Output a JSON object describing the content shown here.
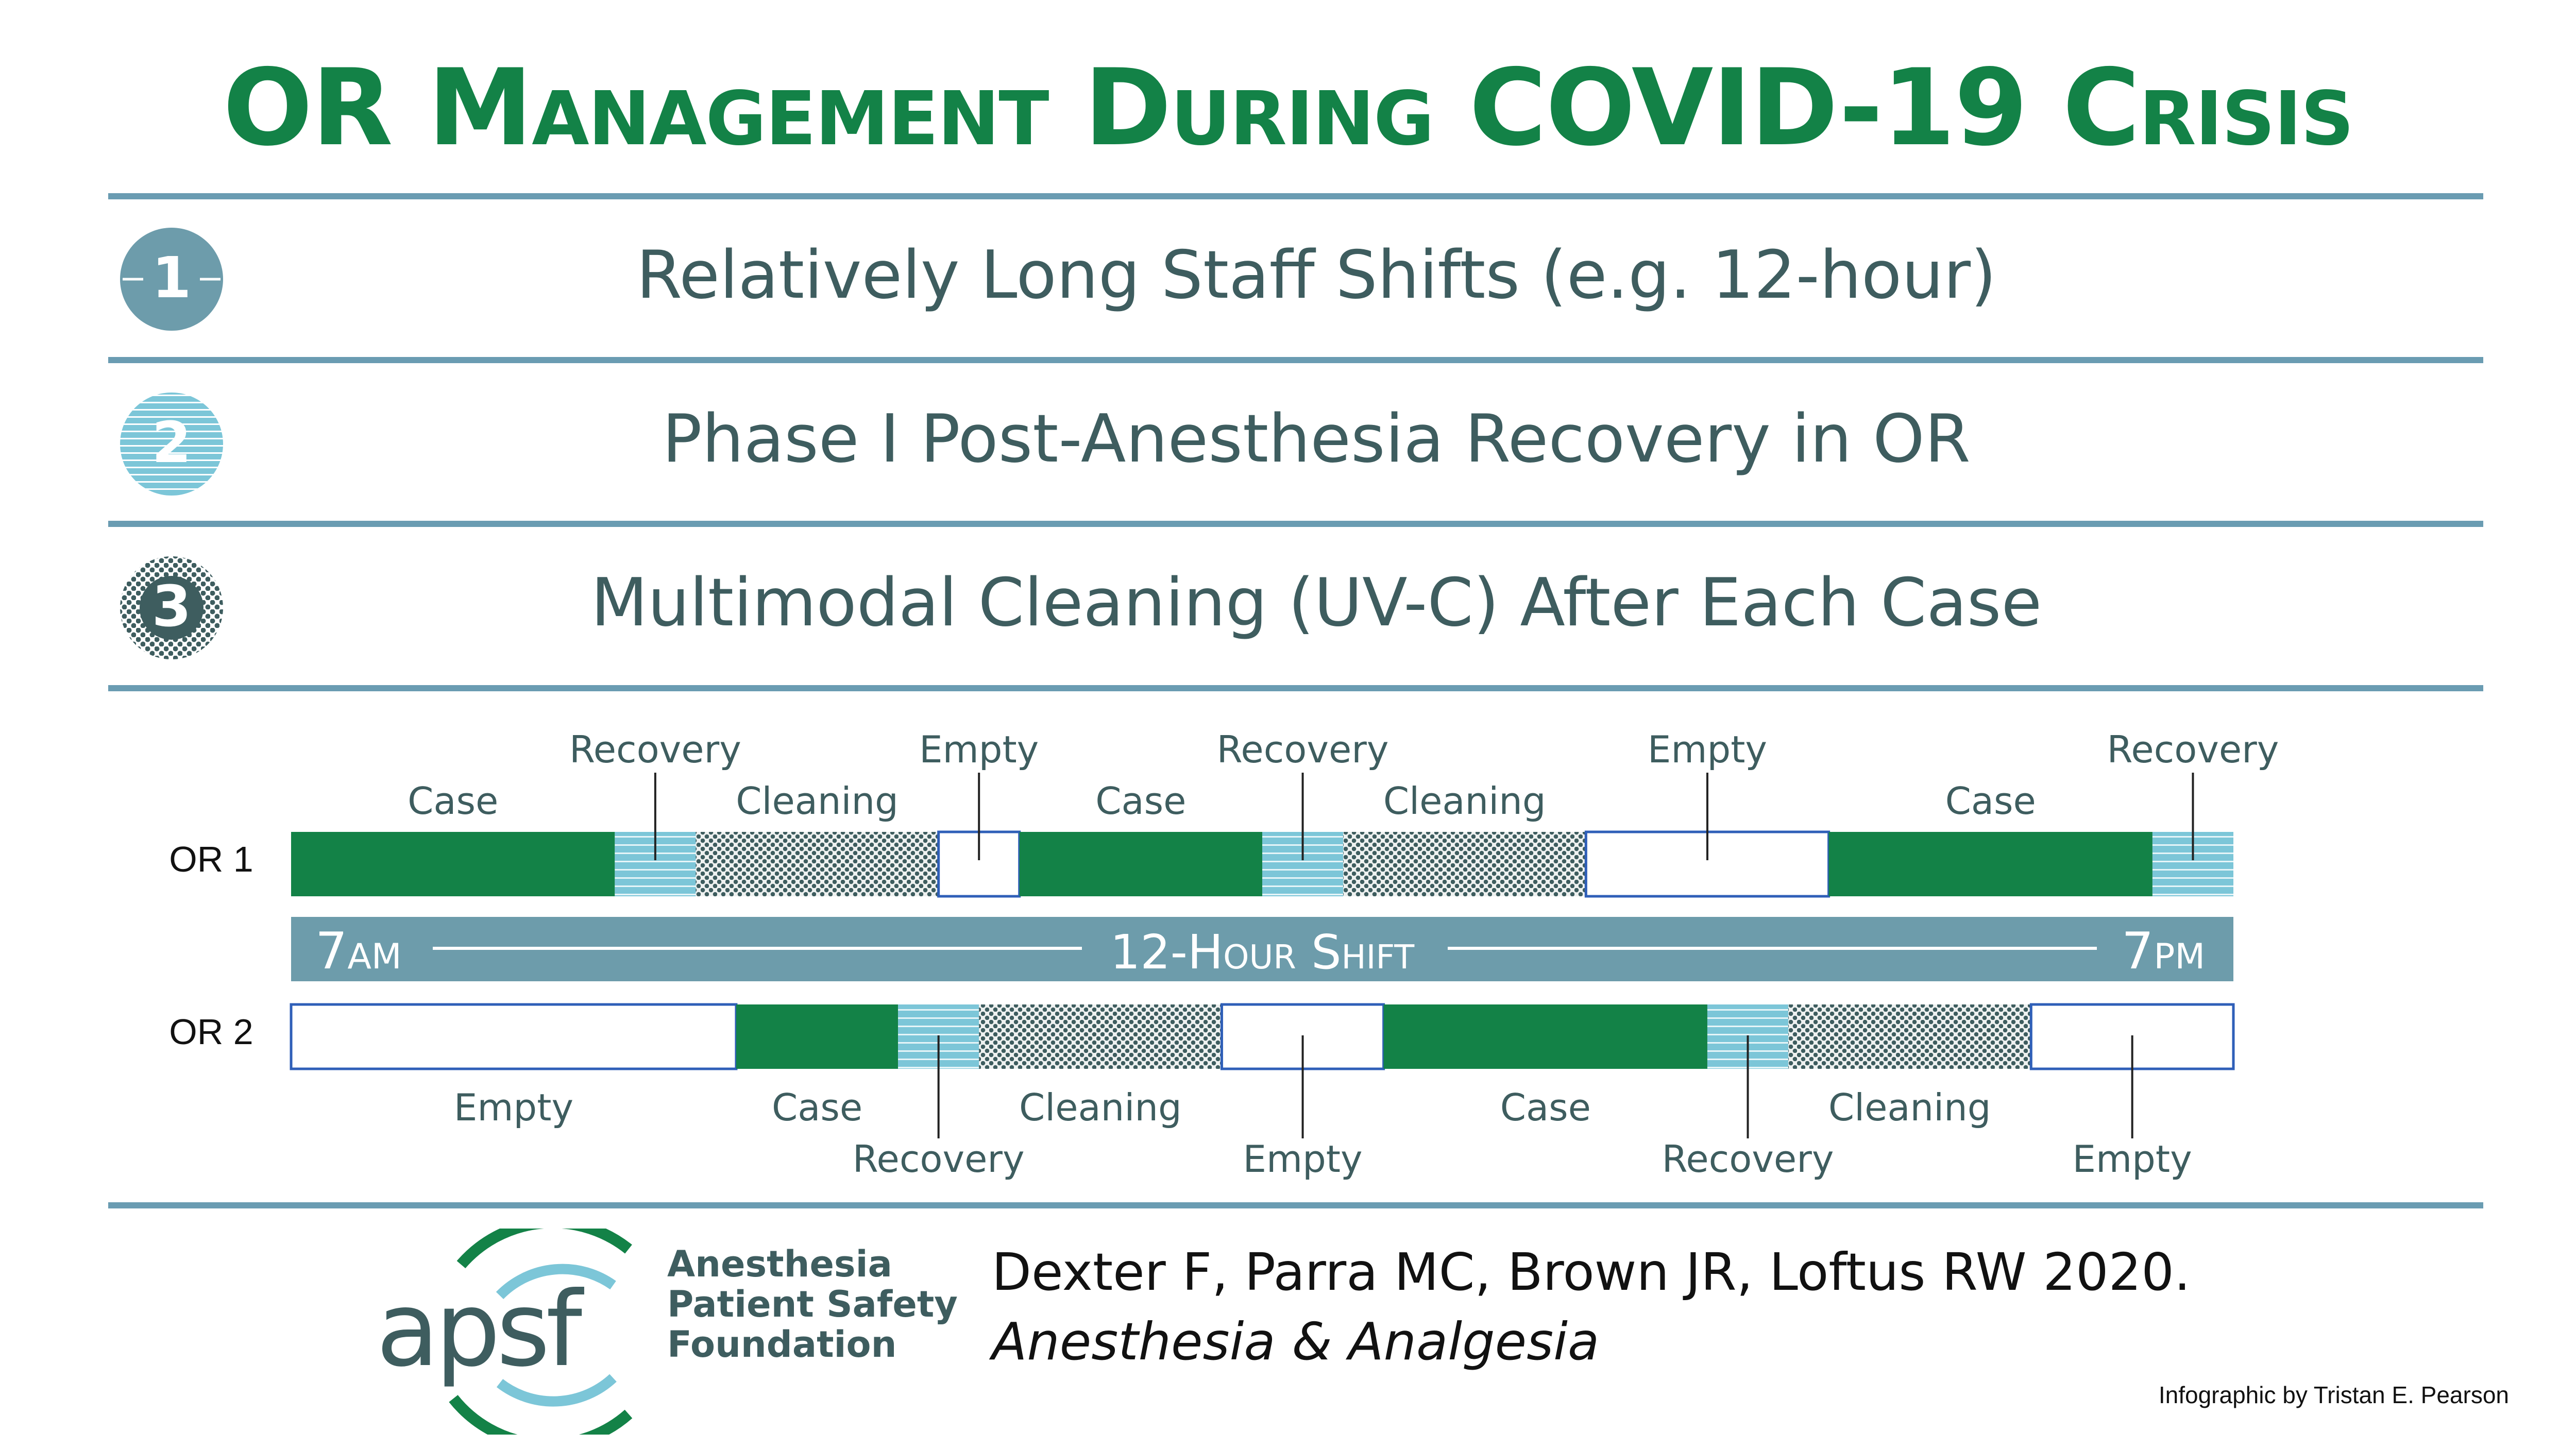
{
  "title": "OR Management During COVID-19 Crisis",
  "items": [
    {
      "number": "1",
      "text": "Relatively Long Staff Shifts (e.g. 12-hour)",
      "color": "#6d9cab"
    },
    {
      "number": "2",
      "text": "Phase I Post-Anesthesia Recovery in OR",
      "color": "#7cc6d8"
    },
    {
      "number": "3",
      "text": "Multimodal Cleaning (UV-C) After Each Case",
      "color": "#3e5d5f"
    }
  ],
  "diagram": {
    "rows": [
      {
        "label": "OR 1",
        "segments": [
          {
            "type": "Case",
            "label": "Case",
            "duration": 2.0
          },
          {
            "type": "Recovery",
            "label": "Recovery",
            "duration": 0.5
          },
          {
            "type": "Cleaning",
            "label": "Cleaning",
            "duration": 1.5
          },
          {
            "type": "Empty",
            "label": "Empty",
            "duration": 0.5
          },
          {
            "type": "Case",
            "label": "Case",
            "duration": 1.5
          },
          {
            "type": "Recovery",
            "label": "Recovery",
            "duration": 0.5
          },
          {
            "type": "Cleaning",
            "label": "Cleaning",
            "duration": 1.5
          },
          {
            "type": "Empty",
            "label": "Empty",
            "duration": 1.5
          },
          {
            "type": "Case",
            "label": "Case",
            "duration": 2.0
          },
          {
            "type": "Recovery",
            "label": "Recovery",
            "duration": 0.5
          }
        ]
      },
      {
        "label": "OR 2",
        "segments": [
          {
            "type": "Empty",
            "label": "Empty",
            "duration": 2.75
          },
          {
            "type": "Case",
            "label": "Case",
            "duration": 1.0
          },
          {
            "type": "Recovery",
            "label": "Recovery",
            "duration": 0.5
          },
          {
            "type": "Cleaning",
            "label": "Cleaning",
            "duration": 1.5
          },
          {
            "type": "Empty",
            "label": "Empty",
            "duration": 1.0
          },
          {
            "type": "Case",
            "label": "Case",
            "duration": 2.0
          },
          {
            "type": "Recovery",
            "label": "Recovery",
            "duration": 0.5
          },
          {
            "type": "Cleaning",
            "label": "Cleaning",
            "duration": 1.5
          },
          {
            "type": "Empty",
            "label": "Empty",
            "duration": 1.25
          }
        ]
      }
    ],
    "shift": {
      "start_number": "7",
      "start_suffix": "AM",
      "label": "12-Hour Shift",
      "end_number": "7",
      "end_suffix": "PM",
      "hours": 12
    },
    "colors": {
      "case": "#138247",
      "recovery": "#7cc6d8",
      "cleaning": "#3e5d5f",
      "empty_border": "#2f5fb8",
      "shift_bar": "#6d9cab"
    }
  },
  "footer": {
    "logo_text": "apsf",
    "org_lines": [
      "Anesthesia",
      "Patient Safety",
      "Foundation"
    ],
    "citation_line1": "Dexter F, Parra MC, Brown JR, Loftus RW 2020.",
    "citation_line2": "Anesthesia & Analgesia",
    "credit": "Infographic by Tristan E. Pearson"
  }
}
